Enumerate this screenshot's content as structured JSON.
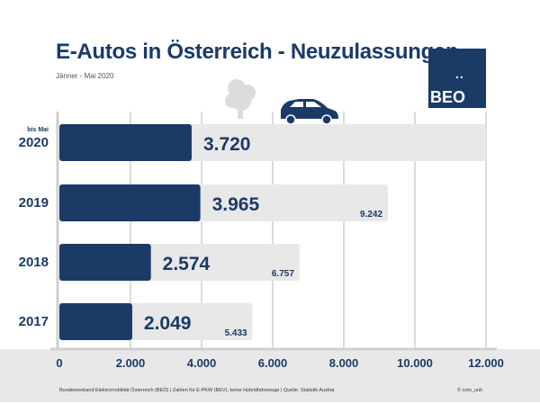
{
  "title": "E-Autos in Österreich - Neuzulassungen",
  "subtitle": "Jänner - Mai 2020",
  "logo": {
    "dots": "..",
    "text": "BEO"
  },
  "footer": {
    "source": "Bundesverband Elektromobilität Österreich (BEÖ) | Zahlen für E-PKW (BEV), keine Hybridfahrzeuge | Quelle: Statistik Austria",
    "copyright": "© com_unit"
  },
  "chart_data": {
    "type": "bar",
    "orientation": "horizontal",
    "categories": [
      "2020",
      "2019",
      "2018",
      "2017"
    ],
    "category_note": "bis Mai",
    "series": [
      {
        "values": [
          3720,
          3965,
          2574,
          2049
        ],
        "labels": [
          "3.720",
          "3.965",
          "2.574",
          "2.049"
        ],
        "color": "#1b3a66"
      },
      {
        "values": [
          null,
          9242,
          6757,
          5433
        ],
        "labels": [
          "",
          "9.242",
          "6.757",
          "5.433"
        ],
        "color": "#e8e8e8"
      }
    ],
    "xlim": [
      0,
      12000
    ],
    "xticks": [
      "0",
      "2.000",
      "4.000",
      "6.000",
      "8.000",
      "10.000",
      "12.000"
    ],
    "grid": true
  }
}
